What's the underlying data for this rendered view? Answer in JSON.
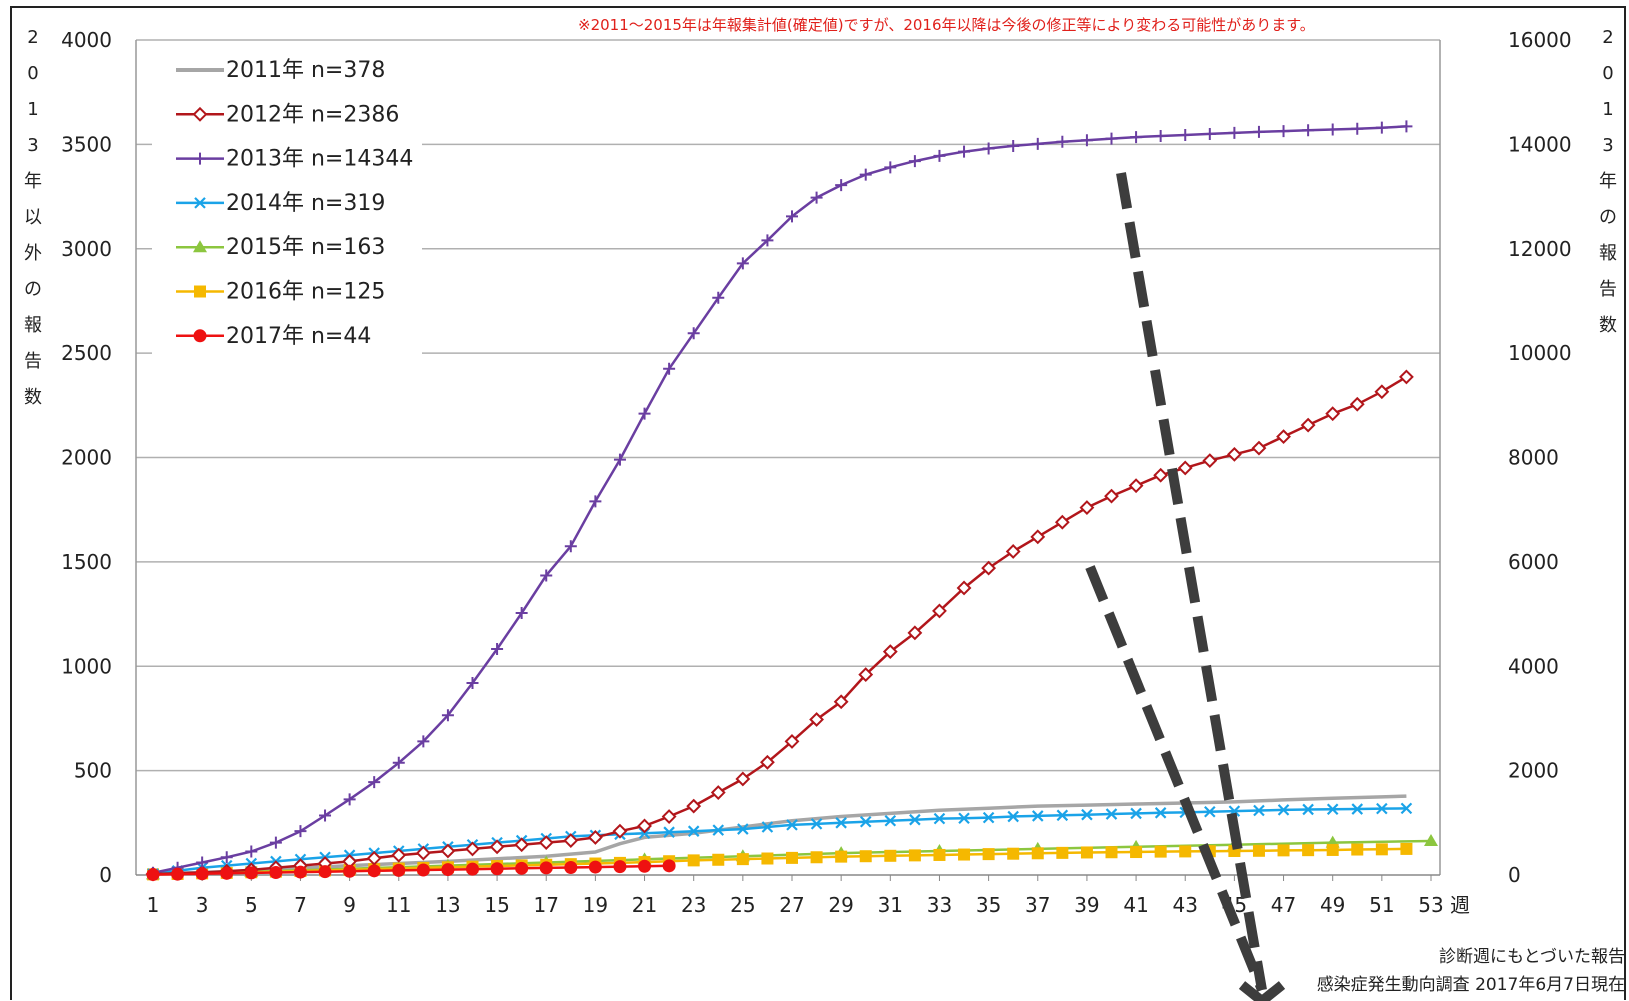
{
  "note": "※2011～2015年は年報集計値(確定値)ですが、2016年以降は今後の修正等により変わる可能性があります。",
  "left_axis_label": "2013年以外の報告数",
  "right_axis_label": "2013年の報告数",
  "x_unit": "週",
  "footer": {
    "line1": "診断週にもとづいた報告",
    "line2": "感染症発生動向調査 2017年6月7日現在"
  },
  "colors": {
    "2011": "#a6a6a6",
    "2012": "#b2161b",
    "2013": "#6a3ea1",
    "2014": "#1aa3e8",
    "2015": "#8cc63f",
    "2016": "#f5b800",
    "2017": "#ee1111",
    "grid": "#b0b0b0",
    "arrow": "#3d3d3d"
  },
  "chart_data": {
    "type": "line",
    "x_ticks": [
      1,
      3,
      5,
      7,
      9,
      11,
      13,
      15,
      17,
      19,
      21,
      23,
      25,
      27,
      29,
      31,
      33,
      35,
      37,
      39,
      41,
      43,
      45,
      47,
      49,
      51,
      53
    ],
    "xlim": [
      1,
      53
    ],
    "ylabel_left": "2013年以外の報告数",
    "ylim_left": [
      0,
      4000
    ],
    "yticks_left": [
      0,
      500,
      1000,
      1500,
      2000,
      2500,
      3000,
      3500,
      4000
    ],
    "ylabel_right": "2013年の報告数",
    "ylim_right": [
      0,
      16000
    ],
    "yticks_right": [
      0,
      2000,
      4000,
      6000,
      8000,
      10000,
      12000,
      14000,
      16000
    ],
    "grid": true,
    "legend_position": "top-left",
    "series": [
      {
        "name": "2011年 n=378",
        "axis": "left",
        "marker": "none",
        "color_key": "2011",
        "points": [
          [
            1,
            5
          ],
          [
            5,
            20
          ],
          [
            9,
            45
          ],
          [
            13,
            65
          ],
          [
            17,
            90
          ],
          [
            19,
            110
          ],
          [
            20,
            150
          ],
          [
            21,
            180
          ],
          [
            23,
            200
          ],
          [
            25,
            230
          ],
          [
            27,
            260
          ],
          [
            29,
            280
          ],
          [
            31,
            295
          ],
          [
            33,
            310
          ],
          [
            35,
            320
          ],
          [
            37,
            330
          ],
          [
            39,
            335
          ],
          [
            41,
            340
          ],
          [
            43,
            345
          ],
          [
            45,
            350
          ],
          [
            47,
            360
          ],
          [
            49,
            368
          ],
          [
            51,
            374
          ],
          [
            52,
            378
          ]
        ]
      },
      {
        "name": "2012年 n=2386",
        "axis": "left",
        "marker": "diamond",
        "color_key": "2012",
        "points": [
          [
            1,
            5
          ],
          [
            2,
            8
          ],
          [
            3,
            12
          ],
          [
            4,
            18
          ],
          [
            5,
            25
          ],
          [
            6,
            35
          ],
          [
            7,
            45
          ],
          [
            8,
            55
          ],
          [
            9,
            65
          ],
          [
            10,
            80
          ],
          [
            11,
            95
          ],
          [
            12,
            105
          ],
          [
            13,
            115
          ],
          [
            14,
            125
          ],
          [
            15,
            135
          ],
          [
            16,
            145
          ],
          [
            17,
            155
          ],
          [
            18,
            165
          ],
          [
            19,
            180
          ],
          [
            20,
            210
          ],
          [
            21,
            235
          ],
          [
            22,
            280
          ],
          [
            23,
            330
          ],
          [
            24,
            395
          ],
          [
            25,
            460
          ],
          [
            26,
            540
          ],
          [
            27,
            640
          ],
          [
            28,
            745
          ],
          [
            29,
            830
          ],
          [
            30,
            960
          ],
          [
            31,
            1070
          ],
          [
            32,
            1160
          ],
          [
            33,
            1265
          ],
          [
            34,
            1375
          ],
          [
            35,
            1470
          ],
          [
            36,
            1550
          ],
          [
            37,
            1620
          ],
          [
            38,
            1690
          ],
          [
            39,
            1760
          ],
          [
            40,
            1815
          ],
          [
            41,
            1865
          ],
          [
            42,
            1915
          ],
          [
            43,
            1950
          ],
          [
            44,
            1985
          ],
          [
            45,
            2015
          ],
          [
            46,
            2045
          ],
          [
            47,
            2100
          ],
          [
            48,
            2155
          ],
          [
            49,
            2210
          ],
          [
            50,
            2255
          ],
          [
            51,
            2315
          ],
          [
            52,
            2386
          ]
        ]
      },
      {
        "name": "2013年 n=14344",
        "axis": "right",
        "marker": "plus",
        "color_key": "2013",
        "points": [
          [
            1,
            40
          ],
          [
            2,
            140
          ],
          [
            3,
            240
          ],
          [
            4,
            340
          ],
          [
            5,
            450
          ],
          [
            6,
            620
          ],
          [
            7,
            840
          ],
          [
            8,
            1140
          ],
          [
            9,
            1450
          ],
          [
            10,
            1780
          ],
          [
            11,
            2150
          ],
          [
            12,
            2560
          ],
          [
            13,
            3060
          ],
          [
            14,
            3680
          ],
          [
            15,
            4330
          ],
          [
            16,
            5020
          ],
          [
            17,
            5740
          ],
          [
            18,
            6300
          ],
          [
            19,
            7160
          ],
          [
            20,
            7960
          ],
          [
            21,
            8840
          ],
          [
            22,
            9700
          ],
          [
            23,
            10380
          ],
          [
            24,
            11060
          ],
          [
            25,
            11720
          ],
          [
            26,
            12160
          ],
          [
            27,
            12620
          ],
          [
            28,
            12980
          ],
          [
            29,
            13220
          ],
          [
            30,
            13420
          ],
          [
            31,
            13560
          ],
          [
            32,
            13680
          ],
          [
            33,
            13780
          ],
          [
            34,
            13860
          ],
          [
            35,
            13920
          ],
          [
            36,
            13970
          ],
          [
            37,
            14010
          ],
          [
            38,
            14050
          ],
          [
            39,
            14080
          ],
          [
            40,
            14110
          ],
          [
            41,
            14140
          ],
          [
            42,
            14160
          ],
          [
            43,
            14180
          ],
          [
            44,
            14200
          ],
          [
            45,
            14220
          ],
          [
            46,
            14240
          ],
          [
            47,
            14255
          ],
          [
            48,
            14270
          ],
          [
            49,
            14285
          ],
          [
            50,
            14300
          ],
          [
            51,
            14320
          ],
          [
            52,
            14344
          ]
        ]
      },
      {
        "name": "2014年 n=319",
        "axis": "left",
        "marker": "x",
        "color_key": "2014",
        "points": [
          [
            1,
            5
          ],
          [
            2,
            20
          ],
          [
            3,
            35
          ],
          [
            4,
            45
          ],
          [
            5,
            55
          ],
          [
            6,
            65
          ],
          [
            7,
            75
          ],
          [
            8,
            85
          ],
          [
            9,
            95
          ],
          [
            10,
            105
          ],
          [
            11,
            115
          ],
          [
            12,
            125
          ],
          [
            13,
            135
          ],
          [
            14,
            145
          ],
          [
            15,
            155
          ],
          [
            16,
            165
          ],
          [
            17,
            175
          ],
          [
            18,
            185
          ],
          [
            19,
            190
          ],
          [
            20,
            195
          ],
          [
            21,
            200
          ],
          [
            22,
            205
          ],
          [
            23,
            210
          ],
          [
            24,
            215
          ],
          [
            25,
            220
          ],
          [
            26,
            230
          ],
          [
            27,
            240
          ],
          [
            28,
            245
          ],
          [
            29,
            250
          ],
          [
            30,
            255
          ],
          [
            31,
            260
          ],
          [
            32,
            265
          ],
          [
            33,
            270
          ],
          [
            34,
            272
          ],
          [
            35,
            275
          ],
          [
            36,
            280
          ],
          [
            37,
            283
          ],
          [
            38,
            286
          ],
          [
            39,
            289
          ],
          [
            40,
            292
          ],
          [
            41,
            295
          ],
          [
            42,
            298
          ],
          [
            43,
            300
          ],
          [
            44,
            303
          ],
          [
            45,
            306
          ],
          [
            46,
            309
          ],
          [
            47,
            312
          ],
          [
            48,
            314
          ],
          [
            49,
            315
          ],
          [
            50,
            316
          ],
          [
            51,
            318
          ],
          [
            52,
            319
          ]
        ]
      },
      {
        "name": "2015年 n=163",
        "axis": "left",
        "marker": "triangle",
        "color_key": "2015",
        "points": [
          [
            1,
            3
          ],
          [
            5,
            15
          ],
          [
            9,
            30
          ],
          [
            13,
            45
          ],
          [
            17,
            60
          ],
          [
            21,
            75
          ],
          [
            25,
            90
          ],
          [
            29,
            105
          ],
          [
            33,
            115
          ],
          [
            37,
            125
          ],
          [
            41,
            135
          ],
          [
            45,
            145
          ],
          [
            49,
            155
          ],
          [
            53,
            163
          ]
        ]
      },
      {
        "name": "2016年 n=125",
        "axis": "left",
        "marker": "square",
        "color_key": "2016",
        "points": [
          [
            1,
            3
          ],
          [
            2,
            5
          ],
          [
            3,
            8
          ],
          [
            4,
            10
          ],
          [
            5,
            13
          ],
          [
            6,
            16
          ],
          [
            7,
            19
          ],
          [
            8,
            22
          ],
          [
            9,
            25
          ],
          [
            10,
            28
          ],
          [
            11,
            31
          ],
          [
            12,
            34
          ],
          [
            13,
            37
          ],
          [
            14,
            40
          ],
          [
            15,
            43
          ],
          [
            16,
            46
          ],
          [
            17,
            49
          ],
          [
            18,
            52
          ],
          [
            19,
            55
          ],
          [
            20,
            58
          ],
          [
            21,
            62
          ],
          [
            22,
            66
          ],
          [
            23,
            70
          ],
          [
            24,
            73
          ],
          [
            25,
            76
          ],
          [
            26,
            79
          ],
          [
            27,
            82
          ],
          [
            28,
            85
          ],
          [
            29,
            88
          ],
          [
            30,
            90
          ],
          [
            31,
            92
          ],
          [
            32,
            94
          ],
          [
            33,
            96
          ],
          [
            34,
            98
          ],
          [
            35,
            100
          ],
          [
            36,
            102
          ],
          [
            37,
            104
          ],
          [
            38,
            106
          ],
          [
            39,
            108
          ],
          [
            40,
            109
          ],
          [
            41,
            110
          ],
          [
            42,
            112
          ],
          [
            43,
            113
          ],
          [
            44,
            114
          ],
          [
            45,
            115
          ],
          [
            46,
            116
          ],
          [
            47,
            118
          ],
          [
            48,
            119
          ],
          [
            49,
            120
          ],
          [
            50,
            122
          ],
          [
            51,
            123
          ],
          [
            52,
            125
          ]
        ]
      },
      {
        "name": "2017年 n=44",
        "axis": "left",
        "marker": "circle",
        "color_key": "2017",
        "points": [
          [
            1,
            2
          ],
          [
            2,
            4
          ],
          [
            3,
            6
          ],
          [
            4,
            8
          ],
          [
            5,
            10
          ],
          [
            6,
            12
          ],
          [
            7,
            14
          ],
          [
            8,
            16
          ],
          [
            9,
            18
          ],
          [
            10,
            20
          ],
          [
            11,
            22
          ],
          [
            12,
            24
          ],
          [
            13,
            26
          ],
          [
            14,
            28
          ],
          [
            15,
            30
          ],
          [
            16,
            32
          ],
          [
            17,
            34
          ],
          [
            18,
            36
          ],
          [
            19,
            38
          ],
          [
            20,
            40
          ],
          [
            21,
            42
          ],
          [
            22,
            44
          ]
        ]
      }
    ]
  }
}
